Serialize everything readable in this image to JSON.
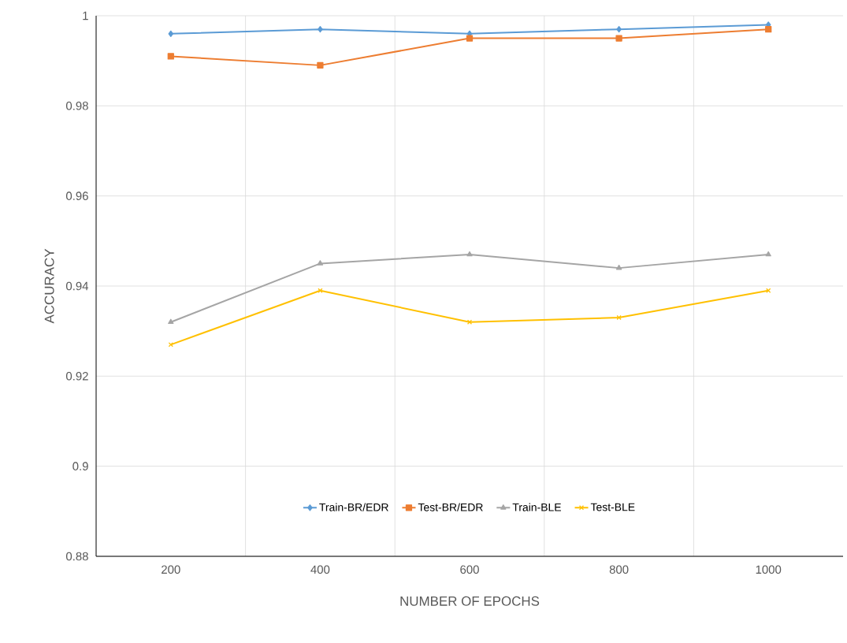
{
  "chart_data": {
    "type": "line",
    "xlabel": "NUMBER OF EPOCHS",
    "ylabel": "ACCURACY",
    "categories": [
      "200",
      "400",
      "600",
      "800",
      "1000"
    ],
    "series": [
      {
        "name": "Train-BR/EDR",
        "color": "#5b9bd5",
        "marker": "diamond",
        "values": [
          0.996,
          0.997,
          0.996,
          0.997,
          0.998
        ]
      },
      {
        "name": "Test-BR/EDR",
        "color": "#ed7d31",
        "marker": "square",
        "values": [
          0.991,
          0.989,
          0.995,
          0.995,
          0.997
        ]
      },
      {
        "name": "Train-BLE",
        "color": "#a5a5a5",
        "marker": "triangle",
        "values": [
          0.932,
          0.945,
          0.947,
          0.944,
          0.947
        ]
      },
      {
        "name": "Test-BLE",
        "color": "#ffc000",
        "marker": "cross",
        "values": [
          0.927,
          0.939,
          0.932,
          0.933,
          0.939
        ]
      }
    ],
    "ylim": [
      0.88,
      1
    ],
    "yticks": [
      0.88,
      0.9,
      0.92,
      0.94,
      0.96,
      0.98,
      1
    ],
    "grid": true,
    "legend": "bottom",
    "line_style": "solid"
  }
}
